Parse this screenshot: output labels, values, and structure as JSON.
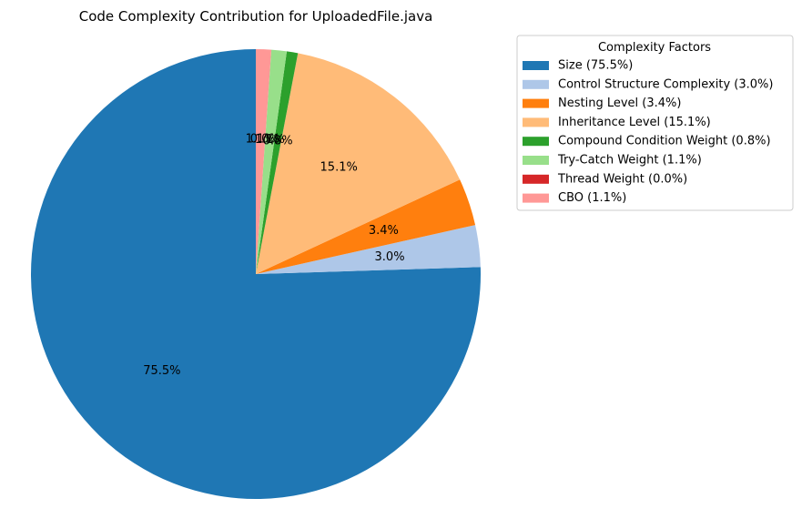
{
  "chart_data": {
    "type": "pie",
    "title": "Code Complexity Contribution for UploadedFile.java",
    "legend": {
      "title": "Complexity Factors",
      "placement": "upper-right-outside"
    },
    "start_angle_deg": 90,
    "direction": "counterclockwise",
    "slices": [
      {
        "label": "Size (75.5%)",
        "value": 75.5,
        "pct_label": "75.5%",
        "color": "#1f77b4"
      },
      {
        "label": "Control Structure Complexity (3.0%)",
        "value": 3.0,
        "pct_label": "3.0%",
        "color": "#aec7e8"
      },
      {
        "label": "Nesting Level (3.4%)",
        "value": 3.4,
        "pct_label": "3.4%",
        "color": "#ff7f0e"
      },
      {
        "label": "Inheritance Level (15.1%)",
        "value": 15.1,
        "pct_label": "15.1%",
        "color": "#ffbb78"
      },
      {
        "label": "Compound Condition Weight (0.8%)",
        "value": 0.8,
        "pct_label": "0.8%",
        "color": "#2ca02c"
      },
      {
        "label": "Try-Catch Weight (1.1%)",
        "value": 1.1,
        "pct_label": "1.1%",
        "color": "#98df8a"
      },
      {
        "label": "Thread Weight (0.0%)",
        "value": 0.0,
        "pct_label": "0.0%",
        "color": "#d62728"
      },
      {
        "label": "CBO (1.1%)",
        "value": 1.1,
        "pct_label": "1.1%",
        "color": "#ff9896"
      }
    ]
  }
}
